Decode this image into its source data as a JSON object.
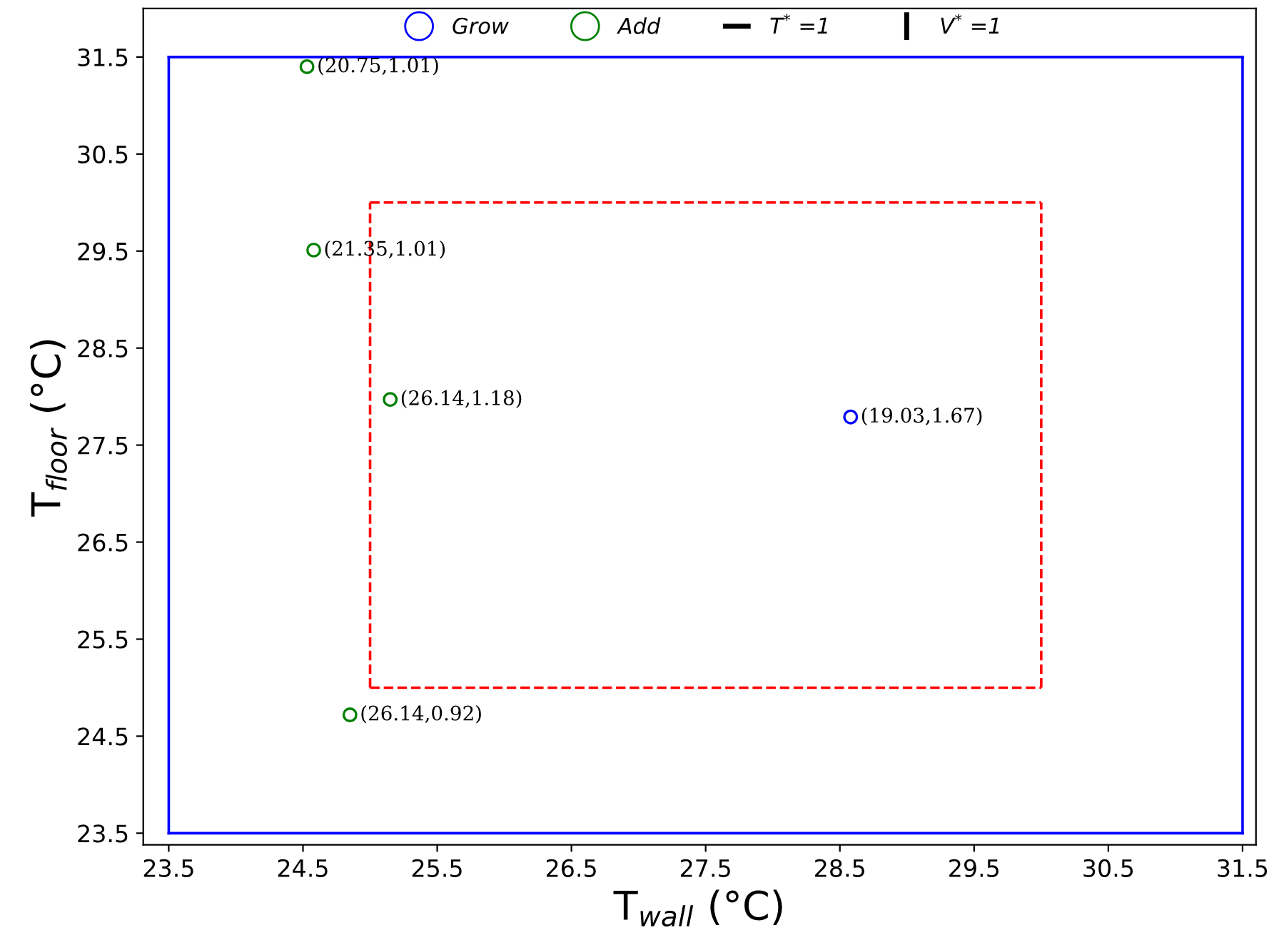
{
  "chart_data": {
    "type": "scatter",
    "xlabel": "T$_{wall}$ (°C)",
    "ylabel": "T$_{floor}$ (°C)",
    "xlim": [
      23.31,
      31.6
    ],
    "ylim": [
      23.38,
      32.0
    ],
    "xticks": [
      23.5,
      24.5,
      25.5,
      26.5,
      27.5,
      28.5,
      29.5,
      30.5,
      31.5
    ],
    "yticks": [
      23.5,
      24.5,
      25.5,
      26.5,
      27.5,
      28.5,
      29.5,
      30.5,
      31.5
    ],
    "grid": false,
    "legend": "top",
    "marker": "circle",
    "annotations": [
      "T$^{*}$ =1",
      "V$^{*}$ =1"
    ],
    "series": [
      {
        "type": "line",
        "color": "#0000ff",
        "line_style": "solid",
        "marker": "none",
        "x": [
          23.5,
          31.5
        ],
        "values": [
          23.5,
          23.5
        ]
      },
      {
        "type": "line",
        "color": "#0000ff",
        "line_style": "solid",
        "marker": "none",
        "x": [
          31.5,
          31.5
        ],
        "values": [
          23.5,
          31.5
        ]
      },
      {
        "type": "line",
        "color": "#0000ff",
        "line_style": "solid",
        "marker": "none",
        "x": [
          23.5,
          31.5
        ],
        "values": [
          31.5,
          31.5
        ]
      },
      {
        "type": "line",
        "color": "#0000ff",
        "line_style": "solid",
        "marker": "none",
        "x": [
          23.5,
          23.5
        ],
        "values": [
          23.5,
          31.5
        ]
      },
      {
        "type": "line",
        "color": "#ff0000",
        "line_style": "dashed",
        "marker": "none",
        "x": [
          25,
          30
        ],
        "values": [
          25,
          25
        ]
      },
      {
        "type": "line",
        "color": "#ff0000",
        "line_style": "dashed",
        "marker": "none",
        "x": [
          30,
          30
        ],
        "values": [
          25,
          30
        ]
      },
      {
        "type": "line",
        "color": "#ff0000",
        "line_style": "dashed",
        "marker": "none",
        "x": [
          25,
          30
        ],
        "values": [
          30,
          30
        ]
      },
      {
        "type": "line",
        "color": "#ff0000",
        "line_style": "dashed",
        "marker": "none",
        "x": [
          25,
          25
        ],
        "values": [
          25,
          30
        ]
      },
      {
        "name": "Grow",
        "color": "#0000ff",
        "x": [
          28.58
        ],
        "values": [
          27.79
        ],
        "value_labels": [
          "(19.03,1.67)"
        ]
      },
      {
        "name": "Add",
        "color": "#008000",
        "x": [
          24.53,
          24.58,
          25.15,
          24.85
        ],
        "values": [
          31.4,
          29.51,
          27.97,
          24.72
        ],
        "value_labels": [
          "(20.75,1.01)",
          "(21.35,1.01)",
          "(26.14,1.18)",
          "(26.14,0.92)"
        ]
      }
    ]
  }
}
